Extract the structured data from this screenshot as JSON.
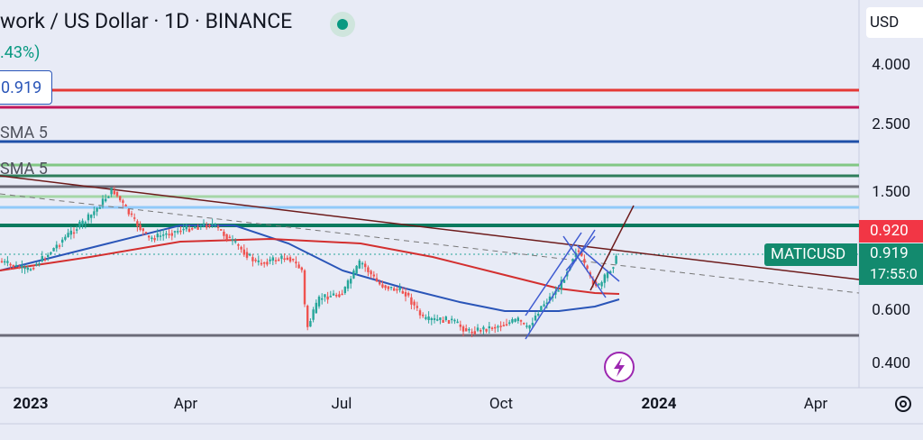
{
  "header": {
    "title": "work / US Dollar · 1D · BINANCE",
    "change": ".43%)",
    "price_box": "0.919",
    "indicators": [
      "SMA 5",
      "SMA 5"
    ],
    "currency": "USD"
  },
  "price_axis": [
    "4.000",
    "2.500",
    "1.500",
    "0.600",
    "0.400"
  ],
  "badges": {
    "alert": "0.920",
    "symbol": "MATICUSD",
    "last": "0.919",
    "countdown": "17:55:0"
  },
  "time_axis": [
    "2023",
    "Apr",
    "Jul",
    "Oct",
    "2024",
    "Apr"
  ]
}
